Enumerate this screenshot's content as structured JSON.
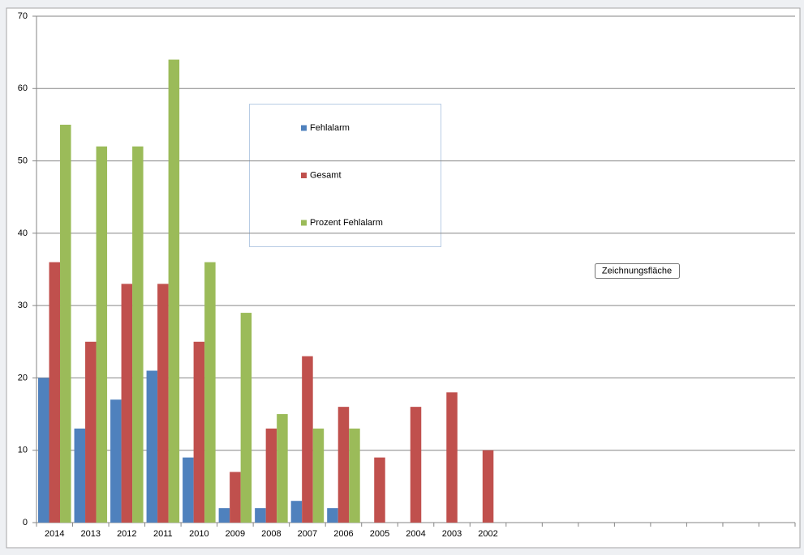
{
  "chart_data": {
    "type": "bar",
    "categories": [
      "2014",
      "2013",
      "2012",
      "2011",
      "2010",
      "2009",
      "2008",
      "2007",
      "2006",
      "2005",
      "2004",
      "2003",
      "2002",
      null,
      null,
      null,
      null,
      null,
      null,
      null,
      null
    ],
    "series": [
      {
        "name": "Fehlalarm",
        "color": "#4f81bd",
        "values": [
          20,
          13,
          17,
          21,
          9,
          2,
          2,
          3,
          2,
          null,
          null,
          null,
          null,
          null,
          null,
          null,
          null,
          null,
          null,
          null,
          null
        ]
      },
      {
        "name": "Gesamt",
        "color": "#c0504d",
        "values": [
          36,
          25,
          33,
          33,
          25,
          7,
          13,
          23,
          16,
          9,
          16,
          18,
          10,
          null,
          null,
          null,
          null,
          null,
          null,
          null,
          null
        ]
      },
      {
        "name": "Prozent Fehlalarm",
        "color": "#9bbb59",
        "values": [
          55,
          52,
          52,
          64,
          36,
          29,
          15,
          13,
          13,
          null,
          null,
          null,
          null,
          null,
          null,
          null,
          null,
          null,
          null,
          null,
          null
        ]
      }
    ],
    "ylim": [
      0,
      70
    ],
    "yticks": [
      0,
      10,
      20,
      30,
      40,
      50,
      60,
      70
    ],
    "grid": true,
    "tooltip": "Zeichnungsfläche"
  }
}
